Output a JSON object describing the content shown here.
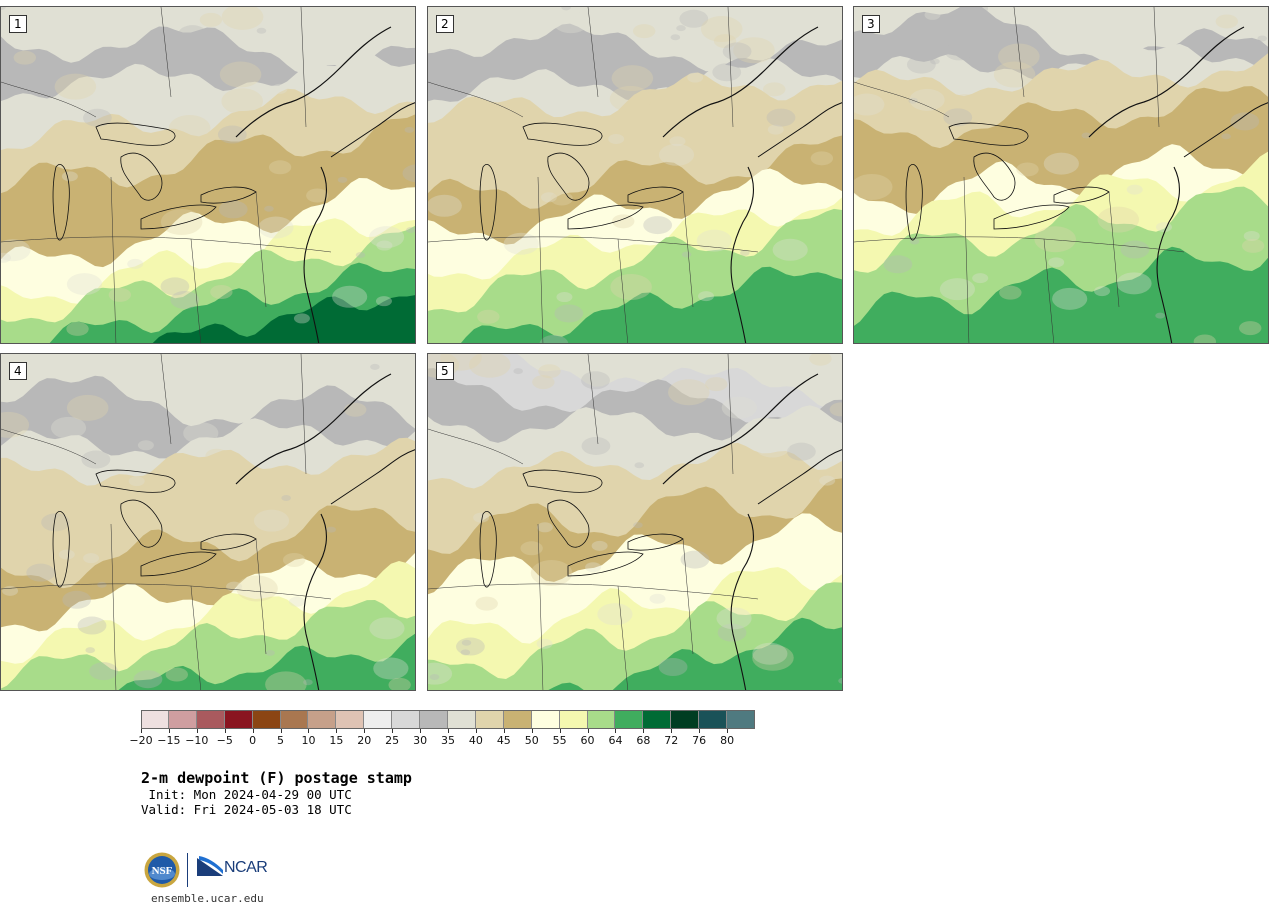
{
  "panels": [
    {
      "label": "1",
      "variant": 0
    },
    {
      "label": "2",
      "variant": 1
    },
    {
      "label": "3",
      "variant": 2
    },
    {
      "label": "4",
      "variant": 3
    },
    {
      "label": "5",
      "variant": 4
    }
  ],
  "colorbar": {
    "colors": [
      "#eee0e0",
      "#cf9ea0",
      "#a95a5e",
      "#8a1520",
      "#8b4513",
      "#a97750",
      "#c6a08a",
      "#dfc3b4",
      "#eeeeee",
      "#d8d8d8",
      "#b8b8b8",
      "#e0e0d4",
      "#e0d4ac",
      "#c9b273",
      "#fefee0",
      "#f4f8b0",
      "#a8dc8a",
      "#40ad5e",
      "#006b35",
      "#003d22",
      "#1a5258",
      "#4f7a80"
    ],
    "ticks": [
      "−20",
      "−15",
      "−10",
      "−5",
      "0",
      "5",
      "10",
      "15",
      "20",
      "25",
      "30",
      "35",
      "40",
      "45",
      "50",
      "55",
      "60",
      "64",
      "68",
      "72",
      "76",
      "80"
    ]
  },
  "title": "2-m dewpoint (F) postage stamp",
  "init": " Init: Mon 2024-04-29 00 UTC",
  "valid": "Valid: Fri 2024-05-03 18 UTC",
  "logos": {
    "nsf": "NSF",
    "ncar": "NCAR"
  },
  "site_url": "ensemble.ucar.edu"
}
